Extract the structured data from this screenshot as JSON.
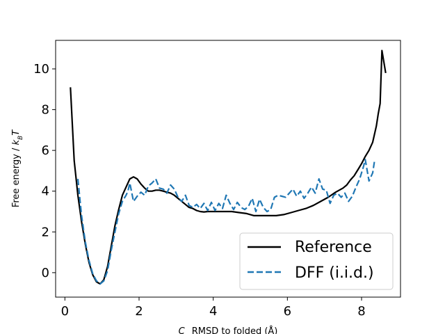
{
  "chart_data": {
    "type": "line",
    "title": "",
    "xlabel": "C_α RMSD to folded (Å)",
    "ylabel": "Free energy / k_BT",
    "xlim": [
      -0.25,
      9.05
    ],
    "ylim": [
      -1.2,
      11.4
    ],
    "xticks": [
      0,
      2,
      4,
      6,
      8
    ],
    "yticks": [
      0,
      2,
      4,
      6,
      8,
      10
    ],
    "xtick_labels": [
      "0",
      "2",
      "4",
      "6",
      "8"
    ],
    "ytick_labels": [
      "0",
      "2",
      "4",
      "6",
      "8",
      "10"
    ],
    "grid": false,
    "legend_position": "lower-right",
    "series": [
      {
        "name": "Reference",
        "color": "#000000",
        "dash": "solid",
        "x": [
          0.15,
          0.25,
          0.35,
          0.45,
          0.55,
          0.65,
          0.75,
          0.85,
          0.95,
          1.05,
          1.15,
          1.25,
          1.35,
          1.45,
          1.55,
          1.65,
          1.75,
          1.85,
          1.95,
          2.05,
          2.15,
          2.25,
          2.35,
          2.45,
          2.55,
          2.65,
          2.75,
          2.85,
          2.95,
          3.05,
          3.15,
          3.25,
          3.35,
          3.45,
          3.55,
          3.65,
          3.75,
          3.85,
          3.95,
          4.1,
          4.3,
          4.5,
          4.7,
          4.9,
          5.1,
          5.3,
          5.5,
          5.7,
          5.9,
          6.1,
          6.3,
          6.5,
          6.7,
          6.9,
          7.1,
          7.3,
          7.5,
          7.6,
          7.7,
          7.8,
          7.9,
          8.0,
          8.1,
          8.2,
          8.3,
          8.4,
          8.45,
          8.5,
          8.55,
          8.65
        ],
        "values": [
          9.1,
          5.5,
          3.8,
          2.5,
          1.4,
          0.5,
          -0.1,
          -0.45,
          -0.55,
          -0.35,
          0.3,
          1.3,
          2.3,
          3.1,
          3.8,
          4.2,
          4.6,
          4.7,
          4.6,
          4.35,
          4.15,
          4.0,
          4.0,
          4.05,
          4.05,
          4.0,
          3.95,
          3.9,
          3.8,
          3.65,
          3.5,
          3.35,
          3.2,
          3.15,
          3.05,
          3.0,
          2.98,
          3.0,
          3.0,
          3.0,
          3.0,
          3.0,
          2.95,
          2.9,
          2.8,
          2.8,
          2.8,
          2.8,
          2.85,
          2.95,
          3.05,
          3.15,
          3.3,
          3.5,
          3.7,
          3.95,
          4.15,
          4.3,
          4.55,
          4.75,
          5.05,
          5.35,
          5.7,
          6.0,
          6.4,
          7.2,
          7.8,
          8.3,
          10.9,
          9.8
        ]
      },
      {
        "name": "DFF (i.i.d.)",
        "color": "#1f77b4",
        "dash": "dashed",
        "x": [
          0.35,
          0.45,
          0.55,
          0.65,
          0.75,
          0.85,
          0.95,
          1.05,
          1.15,
          1.25,
          1.35,
          1.45,
          1.55,
          1.65,
          1.7,
          1.75,
          1.85,
          1.95,
          2.05,
          2.15,
          2.25,
          2.35,
          2.45,
          2.55,
          2.65,
          2.75,
          2.85,
          2.95,
          3.05,
          3.15,
          3.25,
          3.35,
          3.45,
          3.55,
          3.65,
          3.75,
          3.85,
          3.95,
          4.05,
          4.15,
          4.25,
          4.35,
          4.45,
          4.55,
          4.65,
          4.75,
          4.85,
          4.95,
          5.05,
          5.15,
          5.25,
          5.35,
          5.45,
          5.55,
          5.65,
          5.75,
          5.85,
          5.95,
          6.05,
          6.15,
          6.25,
          6.35,
          6.45,
          6.55,
          6.65,
          6.75,
          6.85,
          6.95,
          7.05,
          7.15,
          7.25,
          7.35,
          7.45,
          7.55,
          7.65,
          7.75,
          7.85,
          7.95,
          8.05,
          8.1,
          8.2,
          8.3,
          8.35
        ],
        "values": [
          4.6,
          2.8,
          1.5,
          0.6,
          -0.05,
          -0.4,
          -0.55,
          -0.4,
          0.1,
          1.1,
          2.0,
          2.9,
          3.5,
          3.8,
          4.0,
          4.4,
          3.5,
          3.75,
          3.95,
          3.8,
          4.25,
          4.4,
          4.6,
          4.15,
          4.1,
          3.9,
          4.3,
          4.1,
          3.7,
          3.5,
          3.8,
          3.3,
          3.2,
          3.35,
          3.15,
          3.4,
          3.05,
          3.45,
          3.05,
          3.4,
          3.15,
          3.8,
          3.4,
          3.1,
          3.45,
          3.2,
          3.1,
          3.25,
          3.65,
          3.0,
          3.6,
          3.2,
          3.0,
          3.1,
          3.7,
          3.8,
          3.75,
          3.7,
          3.9,
          4.1,
          3.75,
          4.0,
          3.65,
          3.9,
          4.2,
          3.9,
          4.6,
          4.1,
          4.05,
          3.4,
          3.8,
          3.9,
          3.7,
          3.9,
          3.5,
          3.75,
          4.2,
          4.6,
          5.2,
          5.55,
          4.5,
          4.9,
          5.5
        ]
      }
    ]
  }
}
